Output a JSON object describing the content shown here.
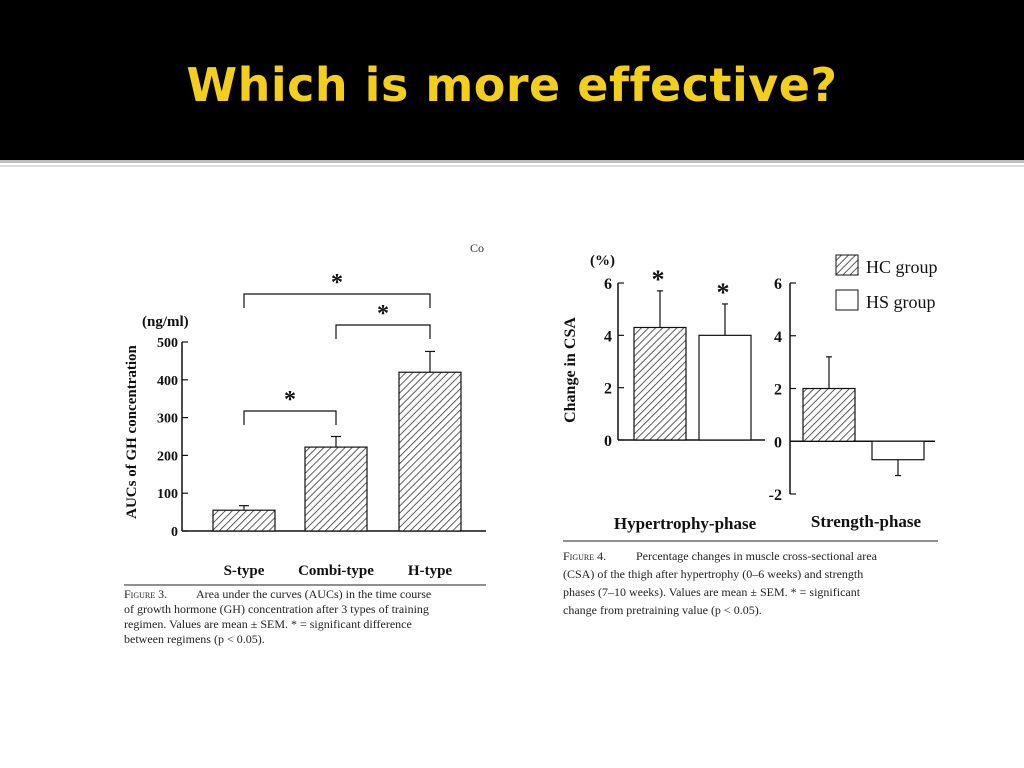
{
  "slide": {
    "title": "Which is more effective?"
  },
  "figure3": {
    "corner_text": "Co",
    "unit": "(ng/ml)",
    "caption": {
      "label": "Figure 3.",
      "lines": [
        "Area under the curves (AUCs) in the time course",
        "of growth hormone (GH) concentration after 3 types of training",
        "regimen. Values are mean ± SEM. * = significant difference",
        "between regimens (p < 0.05)."
      ]
    }
  },
  "figure4": {
    "unit": "(%)",
    "legend": [
      "HC group",
      "HS group"
    ],
    "caption": {
      "label": "Figure 4.",
      "lines": [
        "Percentage changes in muscle cross-sectional area",
        "(CSA) of the thigh after hypertrophy (0–6 weeks) and strength",
        "phases (7–10 weeks). Values are mean ± SEM. * = significant",
        "change from pretraining value (p < 0.05)."
      ]
    }
  },
  "chart_data": [
    {
      "type": "bar",
      "ylabel": "AUCs of GH concentration",
      "categories": [
        "S-type",
        "Combi-type",
        "H-type"
      ],
      "values": [
        55,
        222,
        420
      ],
      "errors": [
        12,
        28,
        55
      ],
      "ylim": [
        0,
        500
      ],
      "yticks": [
        "0",
        "100",
        "200",
        "300",
        "400",
        "500"
      ],
      "significance": [
        {
          "from": 0,
          "to": 1,
          "label": "*"
        },
        {
          "from": 1,
          "to": 2,
          "label": "*"
        },
        {
          "from": 0,
          "to": 2,
          "label": "*"
        }
      ],
      "hatched": true
    },
    {
      "type": "bar",
      "ylabel": "Change in CSA",
      "panels": [
        {
          "name": "Hypertrophy-phase",
          "ylim": [
            0,
            6
          ],
          "yticks": [
            "0",
            "2",
            "4",
            "6"
          ]
        },
        {
          "name": "Strength-phase",
          "ylim": [
            -2,
            6
          ],
          "yticks": [
            "-2",
            "0",
            "2",
            "4",
            "6"
          ]
        }
      ],
      "series": [
        {
          "name": "HC group",
          "values": [
            4.3,
            2.0
          ],
          "errors": [
            1.4,
            1.2
          ],
          "significant": [
            true,
            false
          ],
          "pattern": "hatched"
        },
        {
          "name": "HS group",
          "values": [
            4.0,
            -0.7
          ],
          "errors": [
            1.2,
            0.6
          ],
          "significant": [
            true,
            false
          ],
          "pattern": "open"
        }
      ],
      "significance_label": "*"
    }
  ]
}
